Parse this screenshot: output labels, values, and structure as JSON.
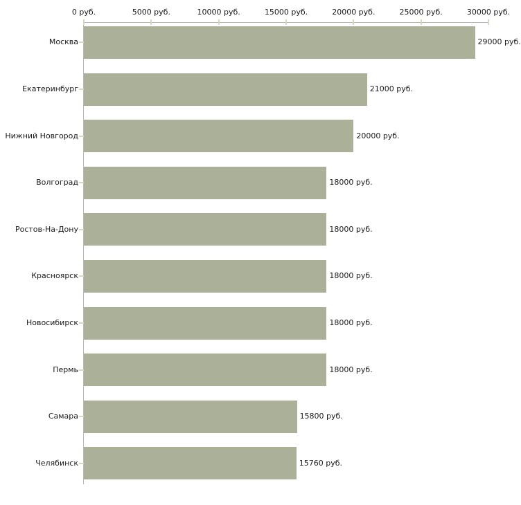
{
  "chart_data": {
    "type": "bar",
    "orientation": "horizontal",
    "title": "",
    "xlabel": "",
    "ylabel": "",
    "units": "руб.",
    "categories": [
      "Москва",
      "Екатеринбург",
      "Нижний Новгород",
      "Волгоград",
      "Ростов-На-Дону",
      "Красноярск",
      "Новосибирск",
      "Пермь",
      "Самара",
      "Челябинск"
    ],
    "values": [
      29000,
      21000,
      20000,
      18000,
      18000,
      18000,
      18000,
      18000,
      15800,
      15760
    ],
    "value_labels": [
      "29000 руб.",
      "21000 руб.",
      "20000 руб.",
      "18000 руб.",
      "18000 руб.",
      "18000 руб.",
      "18000 руб.",
      "18000 руб.",
      "15800 руб.",
      "15760 руб."
    ],
    "x_axis": {
      "range": [
        0,
        30000
      ],
      "ticks": [
        0,
        5000,
        10000,
        15000,
        20000,
        25000,
        30000
      ],
      "tick_labels": [
        "0 руб.",
        "5000 руб.",
        "10000 руб.",
        "15000 руб.",
        "20000 руб.",
        "25000 руб.",
        "30000 руб."
      ]
    },
    "legend": "none",
    "grid": false,
    "bar_color": "#abb198",
    "axis_color": "#b7b7b7",
    "tick_color": "#d5d9c0",
    "text_color": "#1a1a1a"
  }
}
